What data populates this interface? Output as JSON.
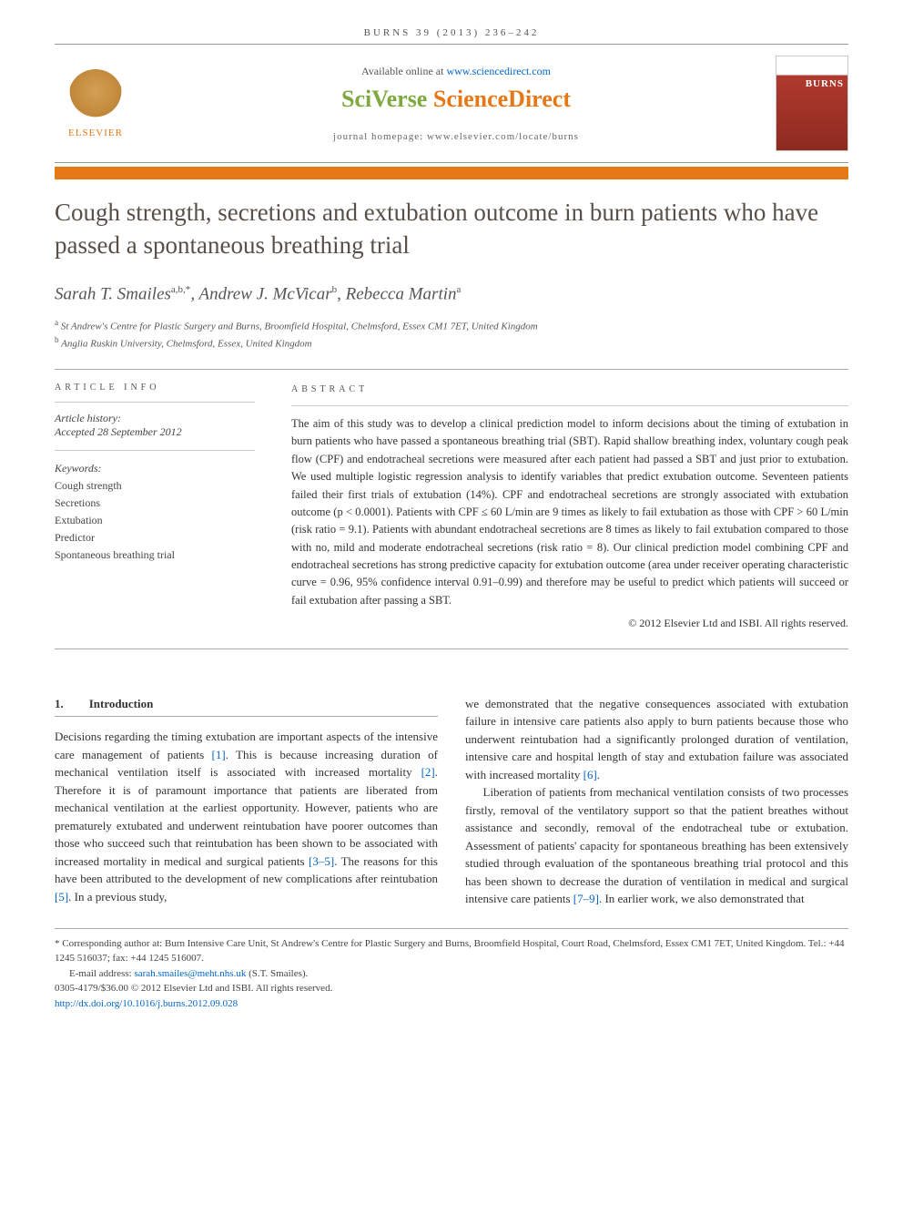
{
  "journal_ref": "BURNS 39 (2013) 236–242",
  "header": {
    "available_prefix": "Available online at ",
    "available_link": "www.sciencedirect.com",
    "sciverse_1": "SciVerse ",
    "sciverse_2": "ScienceDirect",
    "homepage_prefix": "journal homepage: ",
    "homepage_link": "www.elsevier.com/locate/burns",
    "elsevier_label": "ELSEVIER",
    "cover_title": "BURNS"
  },
  "title": "Cough strength, secretions and extubation outcome in burn patients who have passed a spontaneous breathing trial",
  "authors_html": "Sarah T. Smailes",
  "authors": [
    {
      "name": "Sarah T. Smailes",
      "sup": "a,b,*"
    },
    {
      "name": "Andrew J. McVicar",
      "sup": "b"
    },
    {
      "name": "Rebecca Martin",
      "sup": "a"
    }
  ],
  "affiliations": [
    {
      "sup": "a",
      "text": "St Andrew's Centre for Plastic Surgery and Burns, Broomfield Hospital, Chelmsford, Essex CM1 7ET, United Kingdom"
    },
    {
      "sup": "b",
      "text": "Anglia Ruskin University, Chelmsford, Essex, United Kingdom"
    }
  ],
  "article_info": {
    "label": "ARTICLE INFO",
    "history_label": "Article history:",
    "history_text": "Accepted 28 September 2012",
    "keywords_label": "Keywords:",
    "keywords": [
      "Cough strength",
      "Secretions",
      "Extubation",
      "Predictor",
      "Spontaneous breathing trial"
    ]
  },
  "abstract": {
    "label": "ABSTRACT",
    "text": "The aim of this study was to develop a clinical prediction model to inform decisions about the timing of extubation in burn patients who have passed a spontaneous breathing trial (SBT). Rapid shallow breathing index, voluntary cough peak flow (CPF) and endotracheal secretions were measured after each patient had passed a SBT and just prior to extubation. We used multiple logistic regression analysis to identify variables that predict extubation outcome. Seventeen patients failed their first trials of extubation (14%). CPF and endotracheal secretions are strongly associated with extubation outcome (p < 0.0001). Patients with CPF ≤ 60 L/min are 9 times as likely to fail extubation as those with CPF > 60 L/min (risk ratio = 9.1). Patients with abundant endotracheal secretions are 8 times as likely to fail extubation compared to those with no, mild and moderate endotracheal secretions (risk ratio = 8). Our clinical prediction model combining CPF and endotracheal secretions has strong predictive capacity for extubation outcome (area under receiver operating characteristic curve = 0.96, 95% confidence interval 0.91–0.99) and therefore may be useful to predict which patients will succeed or fail extubation after passing a SBT.",
    "copyright": "© 2012 Elsevier Ltd and ISBI. All rights reserved."
  },
  "intro": {
    "num": "1.",
    "heading": "Introduction",
    "col1_p1_a": "Decisions regarding the timing extubation are important aspects of the intensive care management of patients ",
    "col1_p1_ref1": "[1]",
    "col1_p1_b": ". This is because increasing duration of mechanical ventilation itself is associated with increased mortality ",
    "col1_p1_ref2": "[2]",
    "col1_p1_c": ". Therefore it is of paramount importance that patients are liberated from mechanical ventilation at the earliest opportunity. However, patients who are prematurely extubated and underwent reintubation have poorer outcomes than those who succeed such that reintubation has been shown to be associated with increased mortality in medical and surgical patients ",
    "col1_p1_ref3": "[3–5]",
    "col1_p1_d": ". The reasons for this have been attributed to the development of new complications after reintubation ",
    "col1_p1_ref4": "[5]",
    "col1_p1_e": ". In a previous study,",
    "col2_p1_a": "we demonstrated that the negative consequences associated with extubation failure in intensive care patients also apply to burn patients because those who underwent reintubation had a significantly prolonged duration of ventilation, intensive care and hospital length of stay and extubation failure was associated with increased mortality ",
    "col2_p1_ref1": "[6]",
    "col2_p1_b": ".",
    "col2_p2_a": "Liberation of patients from mechanical ventilation consists of two processes firstly, removal of the ventilatory support so that the patient breathes without assistance and secondly, removal of the endotracheal tube or extubation. Assessment of patients' capacity for spontaneous breathing has been extensively studied through evaluation of the spontaneous breathing trial protocol and this has been shown to decrease the duration of ventilation in medical and surgical intensive care patients ",
    "col2_p2_ref1": "[7–9]",
    "col2_p2_b": ". In earlier work, we also demonstrated that"
  },
  "footer": {
    "corr_label": "* Corresponding author at: ",
    "corr_text": "Burn Intensive Care Unit, St Andrew's Centre for Plastic Surgery and Burns, Broomfield Hospital, Court Road, Chelmsford, Essex CM1 7ET, United Kingdom. Tel.: +44 1245 516037; fax: +44 1245 516007.",
    "email_label": "E-mail address: ",
    "email": "sarah.smailes@meht.nhs.uk",
    "email_suffix": " (S.T. Smailes).",
    "issn": "0305-4179/$36.00 © 2012 Elsevier Ltd and ISBI. All rights reserved.",
    "doi": "http://dx.doi.org/10.1016/j.burns.2012.09.028"
  }
}
